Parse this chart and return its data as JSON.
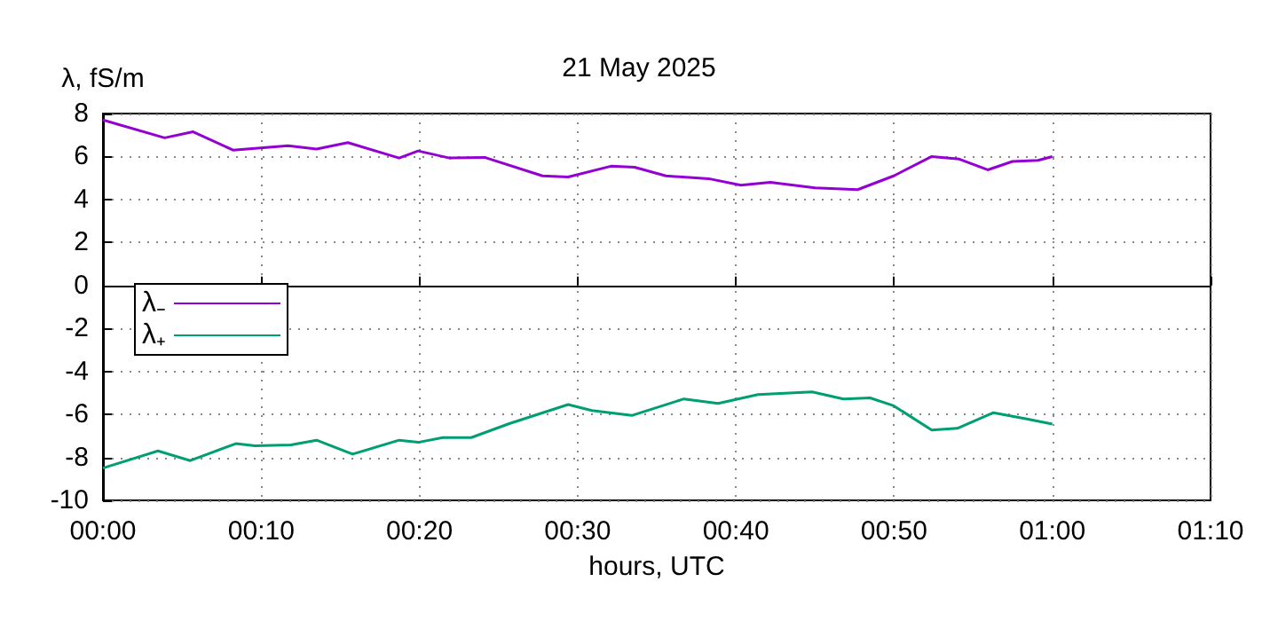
{
  "chart_data": {
    "type": "line",
    "title": "21 May 2025",
    "xlabel": "hours, UTC",
    "ylabel": "λ, fS/m",
    "xlim": [
      0,
      1.1667
    ],
    "xticks": [
      {
        "value": 0,
        "label": "00:00"
      },
      {
        "value": 0.1667,
        "label": "00:10"
      },
      {
        "value": 0.3333,
        "label": "00:20"
      },
      {
        "value": 0.5,
        "label": "00:30"
      },
      {
        "value": 0.6667,
        "label": "00:40"
      },
      {
        "value": 0.8333,
        "label": "00:50"
      },
      {
        "value": 1,
        "label": "01:00"
      },
      {
        "value": 1.1667,
        "label": "01:10"
      }
    ],
    "ylim": [
      -10,
      8
    ],
    "yticks": [
      -10,
      -8,
      -6,
      -4,
      -2,
      0,
      2,
      4,
      6,
      8
    ],
    "grid": true,
    "legend": "left",
    "marker": "none",
    "line_style": "solid",
    "series": [
      {
        "name": "λ₋",
        "color": "#9400d3",
        "x": [
          0,
          0.065,
          0.095,
          0.137,
          0.195,
          0.225,
          0.258,
          0.312,
          0.332,
          0.365,
          0.402,
          0.463,
          0.49,
          0.535,
          0.56,
          0.593,
          0.638,
          0.672,
          0.703,
          0.75,
          0.795,
          0.833,
          0.873,
          0.902,
          0.932,
          0.958,
          0.985,
          1.0
        ],
        "values": [
          7.7,
          6.87,
          7.15,
          6.3,
          6.5,
          6.35,
          6.65,
          5.93,
          6.26,
          5.93,
          5.96,
          5.1,
          5.05,
          5.55,
          5.5,
          5.1,
          4.97,
          4.67,
          4.8,
          4.54,
          4.46,
          5.1,
          6.0,
          5.88,
          5.38,
          5.77,
          5.82,
          6.0
        ]
      },
      {
        "name": "λ₊",
        "color": "#009e73",
        "x": [
          0,
          0.058,
          0.092,
          0.14,
          0.16,
          0.198,
          0.225,
          0.263,
          0.312,
          0.332,
          0.358,
          0.388,
          0.428,
          0.49,
          0.515,
          0.557,
          0.612,
          0.648,
          0.69,
          0.747,
          0.78,
          0.808,
          0.833,
          0.873,
          0.9,
          0.938,
          0.972,
          1.0
        ],
        "values": [
          -8.5,
          -7.7,
          -8.15,
          -7.36,
          -7.46,
          -7.42,
          -7.2,
          -7.85,
          -7.2,
          -7.3,
          -7.08,
          -7.08,
          -6.43,
          -5.54,
          -5.82,
          -6.05,
          -5.28,
          -5.49,
          -5.08,
          -4.95,
          -5.28,
          -5.23,
          -5.6,
          -6.73,
          -6.65,
          -5.92,
          -6.2,
          -6.45
        ]
      }
    ]
  }
}
